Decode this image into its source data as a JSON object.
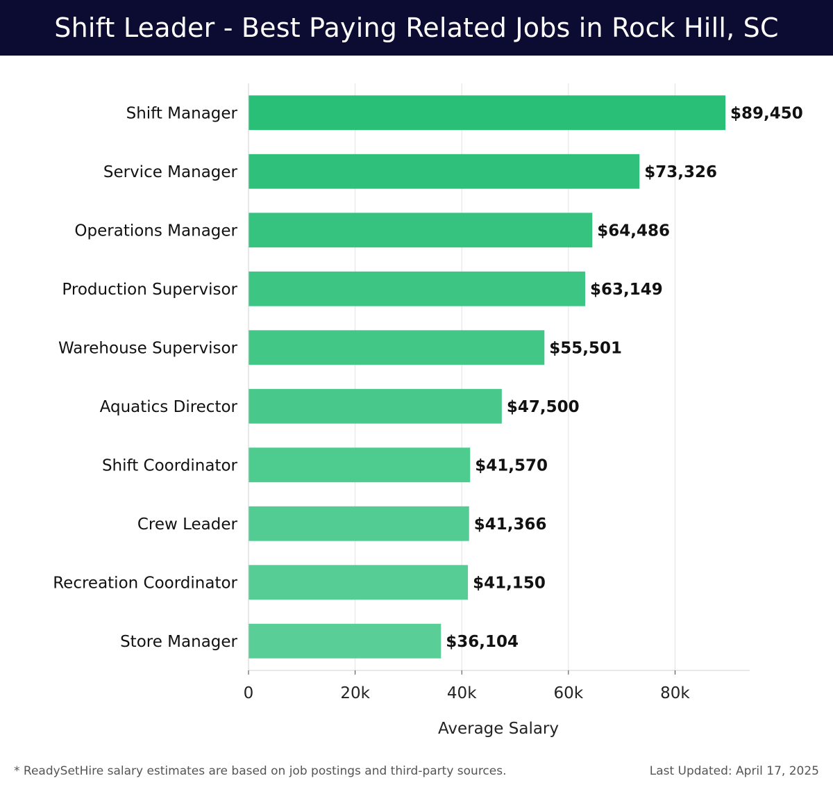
{
  "header": {
    "title": "Shift Leader - Best Paying Related Jobs in Rock Hill, SC"
  },
  "footer": {
    "note": "* ReadySetHire salary estimates are based on job postings and third-party sources.",
    "updated": "Last Updated: April 17, 2025"
  },
  "chart_data": {
    "type": "bar",
    "orientation": "horizontal",
    "title": "Shift Leader - Best Paying Related Jobs in Rock Hill, SC",
    "xlabel": "Average Salary",
    "ylabel": "",
    "xlim": [
      0,
      94000
    ],
    "xticks": [
      0,
      20000,
      40000,
      60000,
      80000
    ],
    "xtick_labels": [
      "0",
      "20k",
      "40k",
      "60k",
      "80k"
    ],
    "grid": "vertical",
    "categories": [
      "Shift Manager",
      "Service Manager",
      "Operations Manager",
      "Production Supervisor",
      "Warehouse Supervisor",
      "Aquatics Director",
      "Shift Coordinator",
      "Crew Leader",
      "Recreation Coordinator",
      "Store Manager"
    ],
    "values": [
      89450,
      73326,
      64486,
      63149,
      55501,
      47500,
      41570,
      41366,
      41150,
      36104
    ],
    "value_labels": [
      "$89,450",
      "$73,326",
      "$64,486",
      "$63,149",
      "$55,501",
      "$47,500",
      "$41,570",
      "$41,366",
      "$41,150",
      "$36,104"
    ],
    "colors": [
      "#29bf77",
      "#2fc17b",
      "#36c37f",
      "#3cc583",
      "#42c787",
      "#48c98b",
      "#4ecb8f",
      "#52cc92",
      "#55cd94",
      "#59ce97"
    ]
  }
}
